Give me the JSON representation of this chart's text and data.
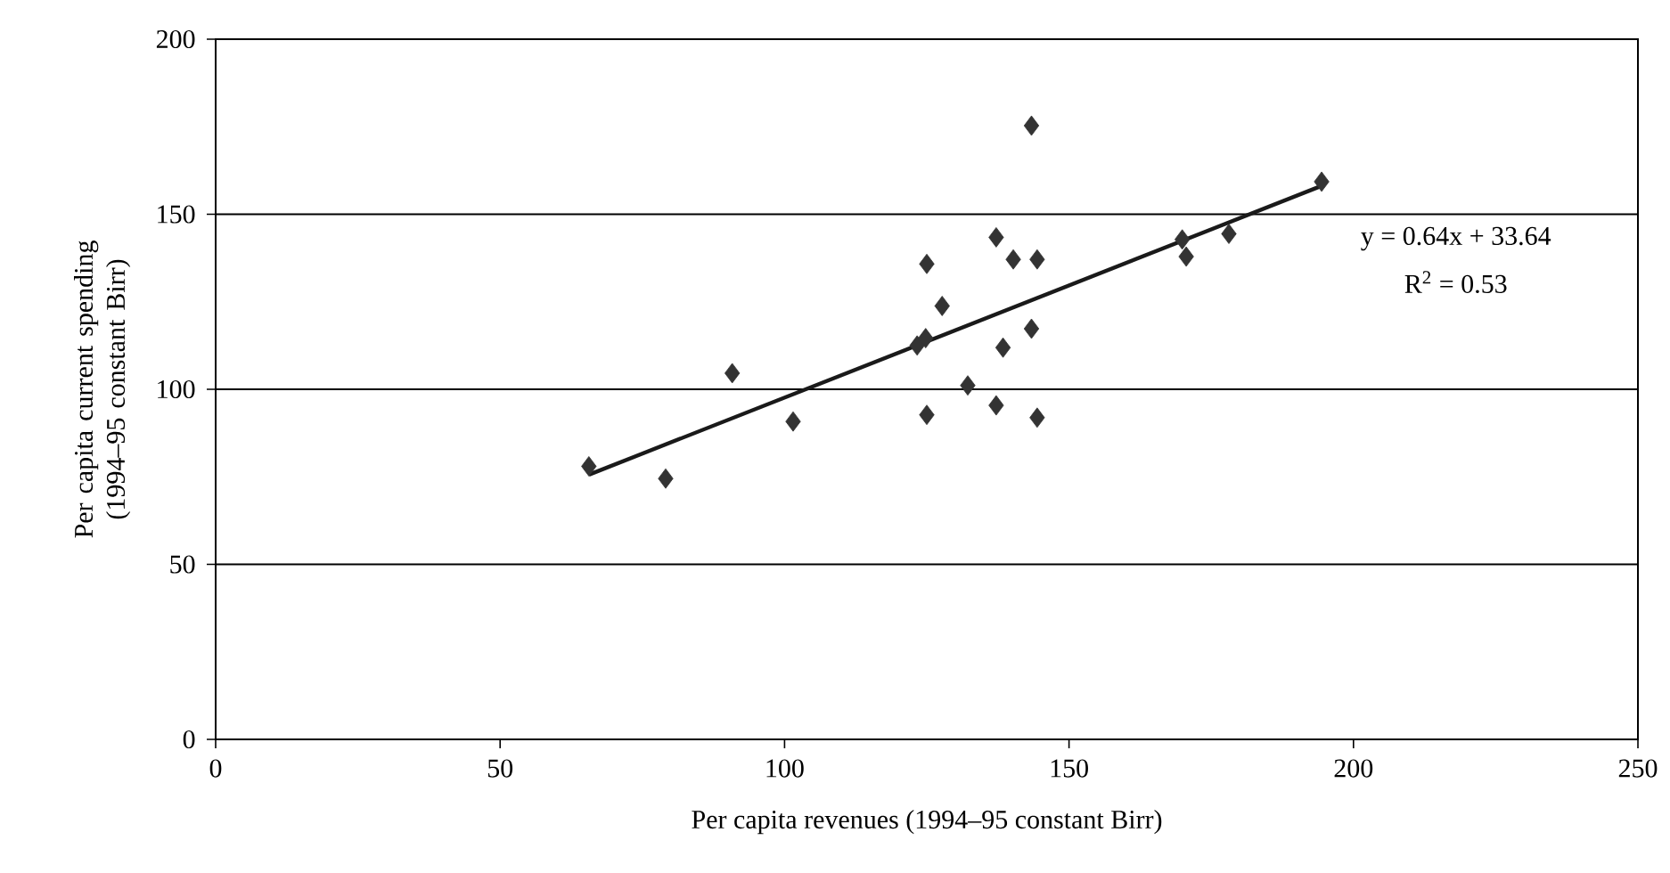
{
  "chart_data": {
    "type": "scatter",
    "xlabel": "Per capita revenues (1994–95 constant Birr)",
    "ylabel": "Per capita current spending (1994–95 constant Birr)",
    "xlim": [
      0,
      250
    ],
    "ylim": [
      0,
      200
    ],
    "xticks": [
      0,
      50,
      100,
      150,
      200,
      250
    ],
    "yticks": [
      0,
      50,
      100,
      150,
      200
    ],
    "grid": "y",
    "marker": "diamond",
    "series": [
      {
        "color": "#333333",
        "x": [
          65.6,
          79.1,
          90.8,
          101.5,
          123.3,
          124.8,
          125.0,
          127.7,
          125.0,
          132.2,
          137.2,
          137.2,
          138.4,
          140.2,
          144.4,
          143.4,
          144.4,
          143.4,
          169.9,
          170.6,
          178.1,
          194.4
        ],
        "values": [
          78.0,
          74.5,
          104.6,
          90.8,
          112.5,
          114.6,
          135.8,
          123.8,
          92.7,
          101.1,
          143.4,
          95.4,
          111.9,
          137.1,
          137.1,
          117.3,
          91.9,
          175.3,
          142.8,
          137.9,
          144.4,
          159.3
        ]
      },
      {
        "type": "line",
        "color": "#1a1a1a",
        "marker": "none",
        "x": [
          65.6,
          194.4
        ],
        "values": [
          75.6,
          158.1
        ]
      }
    ],
    "annotations": [
      "y = 0.64x + 33.64",
      "R$^{2}$ = 0.53"
    ]
  }
}
